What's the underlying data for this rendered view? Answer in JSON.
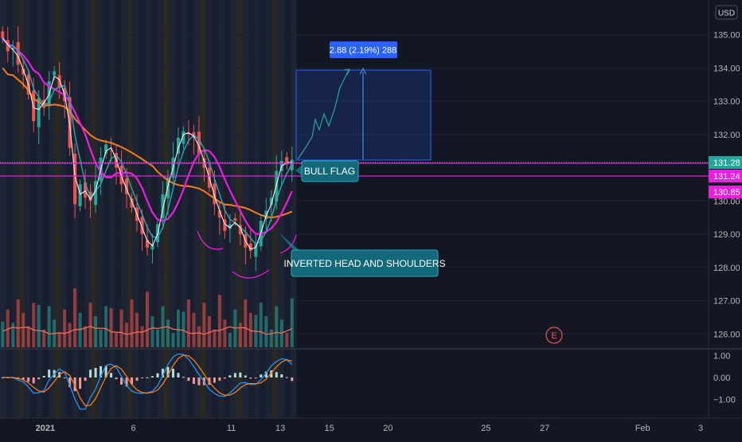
{
  "currency": "USD",
  "price_axis": {
    "ticks": [
      "135.00",
      "134.00",
      "133.00",
      "132.00",
      "130.00",
      "129.00",
      "128.00",
      "127.00",
      "126.00"
    ],
    "tick_values": [
      135,
      134,
      133,
      132,
      130,
      129,
      128,
      127,
      126
    ]
  },
  "price_labels": [
    {
      "text": "131.28",
      "value": 131.28,
      "color": "#26a69a"
    },
    {
      "text": "131.24",
      "value": 131.24,
      "color": "#e91edf"
    },
    {
      "text": "130.85",
      "value": 130.85,
      "color": "#e91edf"
    }
  ],
  "macd_axis": {
    "ticks": [
      "1.00",
      "0.00",
      "−1.00"
    ],
    "tick_values": [
      1,
      0,
      -1
    ]
  },
  "time_axis": {
    "labels": [
      {
        "text": "2021",
        "bold": true,
        "idx": 1.5
      },
      {
        "text": "6",
        "bold": false,
        "idx": 6
      },
      {
        "text": "11",
        "bold": false,
        "idx": 11
      },
      {
        "text": "13",
        "bold": false,
        "idx": 13.5
      },
      {
        "text": "15",
        "bold": false,
        "idx": 16
      },
      {
        "text": "20",
        "bold": false,
        "idx": 19
      },
      {
        "text": "25",
        "bold": false,
        "idx": 24
      },
      {
        "text": "27",
        "bold": false,
        "idx": 27
      },
      {
        "text": "Feb",
        "bold": false,
        "idx": 32
      },
      {
        "text": "3",
        "bold": false,
        "idx": 35
      }
    ]
  },
  "annotations": {
    "bull_flag": "BULL FLAG",
    "inverted_hs": "INVERTED HEAD AND SHOULDERS",
    "measure_label": "2.88 (2.19%) 288",
    "earnings": "E"
  },
  "colors": {
    "up": "#26a69a",
    "down": "#ef5350",
    "ma_magenta": "#e91edf",
    "ma_orange": "#f57c20",
    "ma_white": "#ffffff",
    "ma_teal": "#2aa7b8",
    "accent_blue": "#2962ff",
    "label_teal": "#13697a"
  },
  "chart_data": {
    "type": "candlestick",
    "symbol_currency": "USD",
    "y_range": [
      125.6,
      135.9
    ],
    "horizontal_lines": [
      131.28,
      130.85
    ],
    "target_box": {
      "low": 131.4,
      "high": 134.27,
      "change": "2.88 (2.19%) 288"
    },
    "series": [
      {
        "name": "price",
        "close": [
          134.9,
          134.5,
          134.6,
          134.1,
          133.8,
          133.2,
          132.4,
          133.1,
          132.8,
          133.6,
          133.9,
          133.4,
          133.0,
          131.6,
          129.9,
          130.5,
          130.1,
          130.0,
          130.6,
          131.3,
          131.7,
          131.5,
          131.0,
          130.5,
          130.2,
          129.8,
          129.4,
          129.0,
          128.6,
          128.7,
          129.3,
          130.2,
          130.7,
          131.3,
          131.9,
          132.1,
          132.0,
          131.9,
          131.4,
          131.0,
          130.4,
          129.9,
          129.5,
          129.1,
          129.3,
          129.4,
          129.0,
          128.6,
          128.5,
          128.7,
          129.4,
          129.7,
          130.1,
          130.9,
          131.2,
          131.1,
          131.24
        ]
      }
    ],
    "macd": {
      "range": [
        -1.6,
        1.6
      ]
    }
  }
}
